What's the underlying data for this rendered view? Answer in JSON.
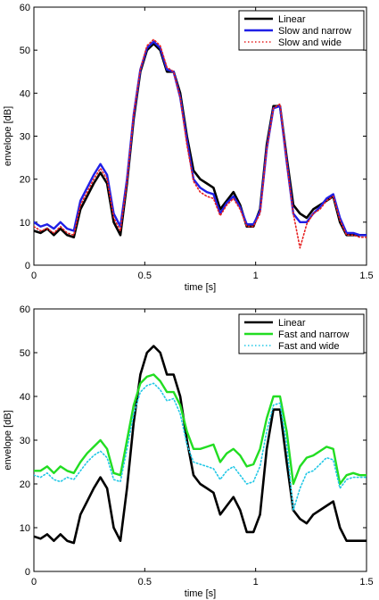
{
  "chart_data": [
    {
      "type": "line",
      "xlabel": "time [s]",
      "ylabel": "envelope [dB]",
      "xlim": [
        0,
        1.5
      ],
      "ylim": [
        0,
        60
      ],
      "xticks": [
        "0",
        "0.5",
        "1",
        "1.5"
      ],
      "yticks": [
        "0",
        "10",
        "20",
        "30",
        "40",
        "50",
        "60"
      ],
      "legend": "top-right",
      "grid": false,
      "series": [
        {
          "name": "Linear",
          "color": "#000000",
          "style": "solid",
          "x": [
            0,
            0.03,
            0.06,
            0.09,
            0.12,
            0.15,
            0.18,
            0.21,
            0.24,
            0.27,
            0.3,
            0.33,
            0.36,
            0.39,
            0.42,
            0.45,
            0.48,
            0.51,
            0.54,
            0.57,
            0.6,
            0.63,
            0.66,
            0.69,
            0.72,
            0.75,
            0.78,
            0.81,
            0.84,
            0.87,
            0.9,
            0.93,
            0.96,
            0.99,
            1.02,
            1.05,
            1.08,
            1.11,
            1.14,
            1.17,
            1.2,
            1.23,
            1.26,
            1.29,
            1.32,
            1.35,
            1.38,
            1.41,
            1.44,
            1.47,
            1.5
          ],
          "y": [
            8,
            7.5,
            8.5,
            7,
            8.5,
            7,
            6.5,
            13,
            16,
            19,
            21.5,
            19,
            10,
            7,
            19,
            34,
            45,
            50,
            51.5,
            50,
            45,
            45,
            40,
            30,
            22,
            20,
            19,
            18,
            13,
            15,
            17,
            14,
            9,
            9,
            13,
            28,
            37,
            37,
            25,
            14,
            12,
            11,
            13,
            14,
            15,
            16,
            10,
            7,
            7,
            7,
            7
          ]
        },
        {
          "name": "Slow and narrow",
          "color": "#1f1fe6",
          "style": "solid",
          "x": [
            0,
            0.03,
            0.06,
            0.09,
            0.12,
            0.15,
            0.18,
            0.21,
            0.24,
            0.27,
            0.3,
            0.33,
            0.36,
            0.39,
            0.42,
            0.45,
            0.48,
            0.51,
            0.54,
            0.57,
            0.6,
            0.63,
            0.66,
            0.69,
            0.72,
            0.75,
            0.78,
            0.81,
            0.84,
            0.87,
            0.9,
            0.93,
            0.96,
            0.99,
            1.02,
            1.05,
            1.08,
            1.11,
            1.14,
            1.17,
            1.2,
            1.23,
            1.26,
            1.29,
            1.32,
            1.35,
            1.38,
            1.41,
            1.44,
            1.47,
            1.5
          ],
          "y": [
            10,
            9,
            9.5,
            8.5,
            10,
            8.5,
            8,
            15,
            18,
            21,
            23.5,
            21,
            12,
            9,
            20,
            35,
            45.5,
            50.5,
            52,
            50.5,
            45.5,
            45,
            39,
            29,
            20,
            18,
            17,
            16.5,
            12,
            14.5,
            16,
            13.5,
            9.5,
            9.5,
            12.5,
            27,
            36.5,
            37,
            24,
            12,
            10,
            10,
            12,
            13.5,
            15.5,
            16.5,
            11,
            7.5,
            7.5,
            7,
            7
          ]
        },
        {
          "name": "Slow and wide",
          "color": "#e62020",
          "style": "dotted",
          "x": [
            0,
            0.03,
            0.06,
            0.09,
            0.12,
            0.15,
            0.18,
            0.21,
            0.24,
            0.27,
            0.3,
            0.33,
            0.36,
            0.39,
            0.42,
            0.45,
            0.48,
            0.51,
            0.54,
            0.57,
            0.6,
            0.63,
            0.66,
            0.69,
            0.72,
            0.75,
            0.78,
            0.81,
            0.84,
            0.87,
            0.9,
            0.93,
            0.96,
            0.99,
            1.02,
            1.05,
            1.08,
            1.11,
            1.14,
            1.17,
            1.2,
            1.23,
            1.26,
            1.29,
            1.32,
            1.35,
            1.38,
            1.41,
            1.44,
            1.47,
            1.5
          ],
          "y": [
            9,
            8,
            8.5,
            7.5,
            9,
            7.5,
            7,
            14,
            17,
            20,
            22.5,
            20,
            11,
            8,
            19.5,
            35,
            45.5,
            51,
            52.5,
            51,
            46,
            45,
            39,
            28,
            19.5,
            17,
            16,
            15.5,
            11.5,
            14,
            15.5,
            13,
            9,
            9,
            12,
            27,
            36.5,
            37.5,
            24,
            12,
            4,
            9.5,
            12,
            13,
            15,
            16,
            10.5,
            7,
            7,
            6.5,
            6.5
          ]
        }
      ]
    },
    {
      "type": "line",
      "xlabel": "time [s]",
      "ylabel": "envelope [dB]",
      "xlim": [
        0,
        1.5
      ],
      "ylim": [
        0,
        60
      ],
      "xticks": [
        "0",
        "0.5",
        "1",
        "1.5"
      ],
      "yticks": [
        "0",
        "10",
        "20",
        "30",
        "40",
        "50",
        "60"
      ],
      "legend": "top-right",
      "grid": false,
      "series": [
        {
          "name": "Linear",
          "color": "#000000",
          "style": "solid",
          "x": [
            0,
            0.03,
            0.06,
            0.09,
            0.12,
            0.15,
            0.18,
            0.21,
            0.24,
            0.27,
            0.3,
            0.33,
            0.36,
            0.39,
            0.42,
            0.45,
            0.48,
            0.51,
            0.54,
            0.57,
            0.6,
            0.63,
            0.66,
            0.69,
            0.72,
            0.75,
            0.78,
            0.81,
            0.84,
            0.87,
            0.9,
            0.93,
            0.96,
            0.99,
            1.02,
            1.05,
            1.08,
            1.11,
            1.14,
            1.17,
            1.2,
            1.23,
            1.26,
            1.29,
            1.32,
            1.35,
            1.38,
            1.41,
            1.44,
            1.47,
            1.5
          ],
          "y": [
            8,
            7.5,
            8.5,
            7,
            8.5,
            7,
            6.5,
            13,
            16,
            19,
            21.5,
            19,
            10,
            7,
            19,
            34,
            45,
            50,
            51.5,
            50,
            45,
            45,
            40,
            30,
            22,
            20,
            19,
            18,
            13,
            15,
            17,
            14,
            9,
            9,
            13,
            28,
            37,
            37,
            25,
            14,
            12,
            11,
            13,
            14,
            15,
            16,
            10,
            7,
            7,
            7,
            7
          ]
        },
        {
          "name": "Fast and narrow",
          "color": "#22dd22",
          "style": "solid",
          "x": [
            0,
            0.03,
            0.06,
            0.09,
            0.12,
            0.15,
            0.18,
            0.21,
            0.24,
            0.27,
            0.3,
            0.33,
            0.36,
            0.39,
            0.42,
            0.45,
            0.48,
            0.51,
            0.54,
            0.57,
            0.6,
            0.63,
            0.66,
            0.69,
            0.72,
            0.75,
            0.78,
            0.81,
            0.84,
            0.87,
            0.9,
            0.93,
            0.96,
            0.99,
            1.02,
            1.05,
            1.08,
            1.11,
            1.14,
            1.17,
            1.2,
            1.23,
            1.26,
            1.29,
            1.32,
            1.35,
            1.38,
            1.41,
            1.44,
            1.47,
            1.5
          ],
          "y": [
            23,
            23,
            24,
            22.5,
            24,
            23,
            22.5,
            25,
            27,
            28.5,
            30,
            28,
            22.5,
            22,
            30,
            38,
            43,
            44.5,
            45,
            43.5,
            41,
            41,
            38,
            32,
            28,
            28,
            28.5,
            29,
            25,
            27,
            28,
            26.5,
            24,
            24.5,
            28,
            35,
            40,
            40,
            32,
            20,
            24,
            26,
            26.5,
            27.5,
            28.5,
            28,
            20,
            22,
            22.5,
            22,
            22
          ]
        },
        {
          "name": "Fast and wide",
          "color": "#22c8e6",
          "style": "dotted",
          "x": [
            0,
            0.03,
            0.06,
            0.09,
            0.12,
            0.15,
            0.18,
            0.21,
            0.24,
            0.27,
            0.3,
            0.33,
            0.36,
            0.39,
            0.42,
            0.45,
            0.48,
            0.51,
            0.54,
            0.57,
            0.6,
            0.63,
            0.66,
            0.69,
            0.72,
            0.75,
            0.78,
            0.81,
            0.84,
            0.87,
            0.9,
            0.93,
            0.96,
            0.99,
            1.02,
            1.05,
            1.08,
            1.11,
            1.14,
            1.17,
            1.2,
            1.23,
            1.26,
            1.29,
            1.32,
            1.35,
            1.38,
            1.41,
            1.44,
            1.47,
            1.5
          ],
          "y": [
            22,
            21.5,
            22.5,
            21,
            20.5,
            21.5,
            21,
            23,
            25,
            26.5,
            27.5,
            26,
            21,
            20.5,
            28,
            36,
            41,
            42.5,
            43,
            41.5,
            39,
            39.5,
            36,
            29,
            25,
            24.5,
            24,
            23.5,
            21,
            23,
            24,
            22,
            20,
            20.5,
            24,
            32,
            38,
            38.5,
            29,
            14,
            19,
            22.5,
            23,
            24.5,
            26,
            25.5,
            19,
            21,
            21.5,
            21.5,
            21.5
          ]
        }
      ]
    }
  ]
}
